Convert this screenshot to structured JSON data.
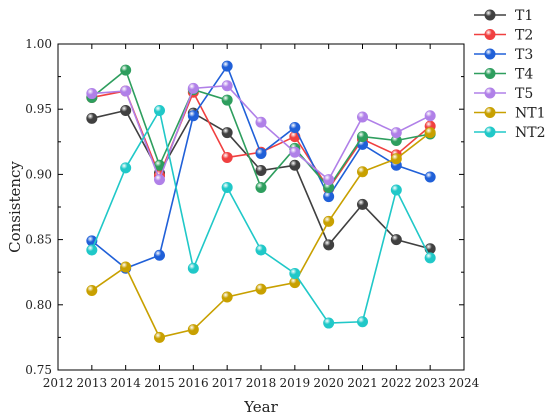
{
  "chart_data": {
    "type": "line",
    "xlabel": "Year",
    "ylabel": "Consistency",
    "xlim": [
      2012,
      2024
    ],
    "ylim": [
      0.75,
      1.0
    ],
    "x_ticks": [
      "2012",
      "2013",
      "2014",
      "2015",
      "2016",
      "2017",
      "2018",
      "2019",
      "2020",
      "2021",
      "2022",
      "2023",
      "2024"
    ],
    "y_ticks": [
      "0.75",
      "0.80",
      "0.85",
      "0.90",
      "0.95",
      "1.00"
    ],
    "legend_position": "right",
    "grid": false,
    "x": [
      2013,
      2014,
      2015,
      2016,
      2017,
      2018,
      2019,
      2020,
      2021,
      2022,
      2023
    ],
    "series": [
      {
        "name": "T1",
        "color": "#404040",
        "values": [
          0.943,
          0.949,
          0.901,
          0.947,
          0.932,
          0.903,
          0.907,
          0.846,
          0.877,
          0.85,
          0.843
        ]
      },
      {
        "name": "T2",
        "color": "#f04040",
        "values": [
          0.959,
          0.964,
          0.899,
          0.963,
          0.913,
          0.917,
          0.929,
          0.889,
          0.927,
          0.915,
          0.937
        ]
      },
      {
        "name": "T3",
        "color": "#2060d8",
        "values": [
          0.849,
          0.828,
          0.838,
          0.945,
          0.983,
          0.916,
          0.936,
          0.883,
          0.923,
          0.907,
          0.898
        ]
      },
      {
        "name": "T4",
        "color": "#2e9e5e",
        "values": [
          0.959,
          0.98,
          0.907,
          0.965,
          0.957,
          0.89,
          0.92,
          0.89,
          0.929,
          0.926,
          0.931
        ]
      },
      {
        "name": "T5",
        "color": "#b080e8",
        "values": [
          0.962,
          0.964,
          0.896,
          0.966,
          0.968,
          0.94,
          0.917,
          0.896,
          0.944,
          0.932,
          0.945
        ]
      },
      {
        "name": "NT1",
        "color": "#c8a000",
        "values": [
          0.811,
          0.829,
          0.775,
          0.781,
          0.806,
          0.812,
          0.817,
          0.864,
          0.902,
          0.912,
          0.932
        ]
      },
      {
        "name": "NT2",
        "color": "#20c8c8",
        "values": [
          0.842,
          0.905,
          0.949,
          0.828,
          0.89,
          0.842,
          0.824,
          0.786,
          0.787,
          0.888,
          0.836
        ]
      }
    ]
  }
}
